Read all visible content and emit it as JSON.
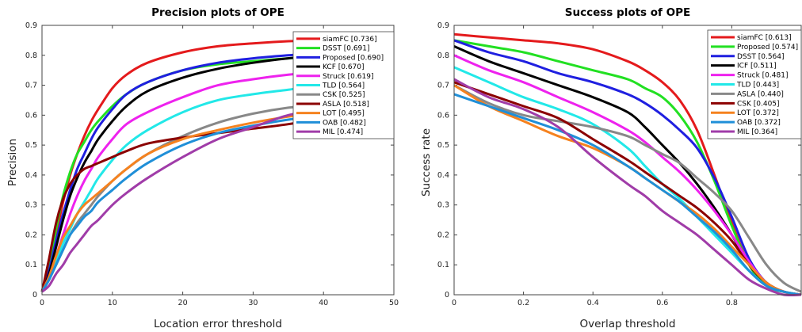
{
  "chart_data": [
    {
      "type": "line",
      "title": "Precision plots of OPE",
      "xlabel": "Location error threshold",
      "ylabel": "Precision",
      "xlim": [
        0,
        50
      ],
      "ylim": [
        0,
        0.9
      ],
      "xticks": [
        "0",
        "10",
        "20",
        "30",
        "40",
        "50"
      ],
      "yticks": [
        "0",
        "0.1",
        "0.2",
        "0.3",
        "0.4",
        "0.5",
        "0.6",
        "0.7",
        "0.8",
        "0.9"
      ],
      "legend_position": "top-right",
      "x": [
        0,
        1,
        2,
        3,
        4,
        5,
        6,
        7,
        8,
        10,
        12,
        15,
        20,
        25,
        30,
        35,
        40,
        45,
        50
      ],
      "series": [
        {
          "name": "siamFC [0.736]",
          "color": "#e41a1c",
          "values": [
            0.01,
            0.08,
            0.2,
            0.31,
            0.4,
            0.47,
            0.53,
            0.58,
            0.62,
            0.69,
            0.735,
            0.775,
            0.81,
            0.83,
            0.84,
            0.847,
            0.85,
            0.853,
            0.855
          ]
        },
        {
          "name": "DSST [0.691]",
          "color": "#22e022",
          "values": [
            0.01,
            0.1,
            0.22,
            0.33,
            0.41,
            0.47,
            0.51,
            0.55,
            0.58,
            0.63,
            0.67,
            0.71,
            0.75,
            0.77,
            0.78,
            0.79,
            0.795,
            0.8,
            0.805
          ]
        },
        {
          "name": "Proposed [0.690]",
          "color": "#1f1fe0",
          "values": [
            0.01,
            0.08,
            0.18,
            0.27,
            0.35,
            0.42,
            0.47,
            0.52,
            0.56,
            0.62,
            0.67,
            0.71,
            0.75,
            0.775,
            0.79,
            0.8,
            0.81,
            0.815,
            0.82
          ]
        },
        {
          "name": "KCF [0.670]",
          "color": "#000000",
          "values": [
            0.01,
            0.07,
            0.16,
            0.25,
            0.33,
            0.39,
            0.44,
            0.48,
            0.52,
            0.58,
            0.63,
            0.68,
            0.725,
            0.755,
            0.775,
            0.79,
            0.8,
            0.81,
            0.815
          ]
        },
        {
          "name": "Struck [0.619]",
          "color": "#ee22ee",
          "values": [
            0.01,
            0.06,
            0.13,
            0.2,
            0.27,
            0.33,
            0.38,
            0.42,
            0.46,
            0.52,
            0.57,
            0.61,
            0.66,
            0.7,
            0.72,
            0.735,
            0.745,
            0.755,
            0.765
          ]
        },
        {
          "name": "TLD [0.564]",
          "color": "#22e8e8",
          "values": [
            0.01,
            0.05,
            0.11,
            0.17,
            0.22,
            0.27,
            0.31,
            0.35,
            0.39,
            0.45,
            0.5,
            0.55,
            0.61,
            0.65,
            0.67,
            0.685,
            0.7,
            0.71,
            0.725
          ]
        },
        {
          "name": "CSK [0.525]",
          "color": "#888888",
          "values": [
            0.01,
            0.05,
            0.1,
            0.15,
            0.2,
            0.24,
            0.27,
            0.3,
            0.33,
            0.38,
            0.42,
            0.47,
            0.53,
            0.575,
            0.605,
            0.625,
            0.635,
            0.645,
            0.65
          ]
        },
        {
          "name": "ASLA [0.518]",
          "color": "#8b0000",
          "values": [
            0.01,
            0.12,
            0.24,
            0.32,
            0.37,
            0.4,
            0.42,
            0.43,
            0.44,
            0.46,
            0.48,
            0.505,
            0.525,
            0.54,
            0.555,
            0.57,
            0.59,
            0.615,
            0.64
          ]
        },
        {
          "name": "LOT [0.495]",
          "color": "#f5821f",
          "values": [
            0.01,
            0.06,
            0.13,
            0.19,
            0.23,
            0.27,
            0.3,
            0.32,
            0.34,
            0.38,
            0.42,
            0.47,
            0.52,
            0.55,
            0.575,
            0.595,
            0.61,
            0.625,
            0.64
          ]
        },
        {
          "name": "OAB [0.482]",
          "color": "#1f8fd8",
          "values": [
            0.01,
            0.05,
            0.1,
            0.15,
            0.2,
            0.23,
            0.26,
            0.28,
            0.31,
            0.35,
            0.39,
            0.44,
            0.5,
            0.54,
            0.565,
            0.585,
            0.6,
            0.61,
            0.62
          ]
        },
        {
          "name": "MIL [0.474]",
          "color": "#a03ca8",
          "values": [
            0.01,
            0.03,
            0.07,
            0.1,
            0.14,
            0.17,
            0.2,
            0.23,
            0.25,
            0.3,
            0.34,
            0.39,
            0.46,
            0.52,
            0.56,
            0.6,
            0.62,
            0.64,
            0.65
          ]
        }
      ]
    },
    {
      "type": "line",
      "title": "Success plots of OPE",
      "xlabel": "Overlap threshold",
      "ylabel": "Success rate",
      "xlim": [
        0,
        1
      ],
      "ylim": [
        0,
        0.9
      ],
      "xticks": [
        "0",
        "0.2",
        "0.4",
        "0.6",
        "0.8"
      ],
      "yticks": [
        "0",
        "0.1",
        "0.2",
        "0.3",
        "0.4",
        "0.5",
        "0.6",
        "0.7",
        "0.8",
        "0.9"
      ],
      "legend_position": "top-right",
      "x": [
        0,
        0.1,
        0.2,
        0.3,
        0.4,
        0.5,
        0.55,
        0.6,
        0.65,
        0.7,
        0.75,
        0.8,
        0.85,
        0.9,
        0.95,
        1.0
      ],
      "series": [
        {
          "name": "siamFC [0.613]",
          "color": "#e41a1c",
          "values": [
            0.87,
            0.86,
            0.85,
            0.84,
            0.82,
            0.78,
            0.75,
            0.71,
            0.65,
            0.55,
            0.4,
            0.24,
            0.1,
            0.03,
            0.01,
            0.0
          ]
        },
        {
          "name": "Proposed [0.574]",
          "color": "#22e022",
          "values": [
            0.85,
            0.83,
            0.81,
            0.78,
            0.75,
            0.72,
            0.69,
            0.66,
            0.6,
            0.51,
            0.38,
            0.23,
            0.1,
            0.03,
            0.01,
            0.0
          ]
        },
        {
          "name": "DSST [0.564]",
          "color": "#1f1fe0",
          "values": [
            0.85,
            0.81,
            0.78,
            0.74,
            0.71,
            0.67,
            0.64,
            0.6,
            0.55,
            0.49,
            0.39,
            0.26,
            0.12,
            0.04,
            0.01,
            0.0
          ]
        },
        {
          "name": "ICF [0.511]",
          "color": "#000000",
          "values": [
            0.83,
            0.78,
            0.74,
            0.7,
            0.66,
            0.61,
            0.56,
            0.5,
            0.44,
            0.37,
            0.29,
            0.2,
            0.1,
            0.04,
            0.01,
            0.0
          ]
        },
        {
          "name": "Struck [0.481]",
          "color": "#ee22ee",
          "values": [
            0.8,
            0.75,
            0.71,
            0.66,
            0.61,
            0.55,
            0.51,
            0.46,
            0.41,
            0.35,
            0.28,
            0.2,
            0.11,
            0.04,
            0.01,
            0.0
          ]
        },
        {
          "name": "TLD [0.443]",
          "color": "#22e8e8",
          "values": [
            0.76,
            0.71,
            0.66,
            0.62,
            0.57,
            0.49,
            0.43,
            0.37,
            0.32,
            0.26,
            0.2,
            0.14,
            0.08,
            0.03,
            0.01,
            0.0
          ]
        },
        {
          "name": "ASLA [0.440]",
          "color": "#888888",
          "values": [
            0.7,
            0.64,
            0.6,
            0.58,
            0.56,
            0.53,
            0.5,
            0.47,
            0.44,
            0.39,
            0.34,
            0.28,
            0.19,
            0.1,
            0.04,
            0.01
          ]
        },
        {
          "name": "CSK [0.405]",
          "color": "#8b0000",
          "values": [
            0.71,
            0.67,
            0.63,
            0.59,
            0.52,
            0.45,
            0.41,
            0.37,
            0.33,
            0.29,
            0.24,
            0.18,
            0.1,
            0.04,
            0.01,
            0.0
          ]
        },
        {
          "name": "LOT [0.372]",
          "color": "#f5821f",
          "values": [
            0.7,
            0.63,
            0.58,
            0.53,
            0.49,
            0.43,
            0.39,
            0.35,
            0.31,
            0.27,
            0.22,
            0.16,
            0.1,
            0.04,
            0.01,
            0.0
          ]
        },
        {
          "name": "OAB [0.372]",
          "color": "#1f8fd8",
          "values": [
            0.67,
            0.63,
            0.59,
            0.55,
            0.5,
            0.43,
            0.39,
            0.35,
            0.31,
            0.26,
            0.21,
            0.15,
            0.08,
            0.03,
            0.01,
            0.0
          ]
        },
        {
          "name": "MIL [0.364]",
          "color": "#a03ca8",
          "values": [
            0.72,
            0.66,
            0.62,
            0.56,
            0.46,
            0.37,
            0.33,
            0.28,
            0.24,
            0.2,
            0.15,
            0.1,
            0.05,
            0.02,
            0.0,
            0.0
          ]
        }
      ]
    }
  ]
}
